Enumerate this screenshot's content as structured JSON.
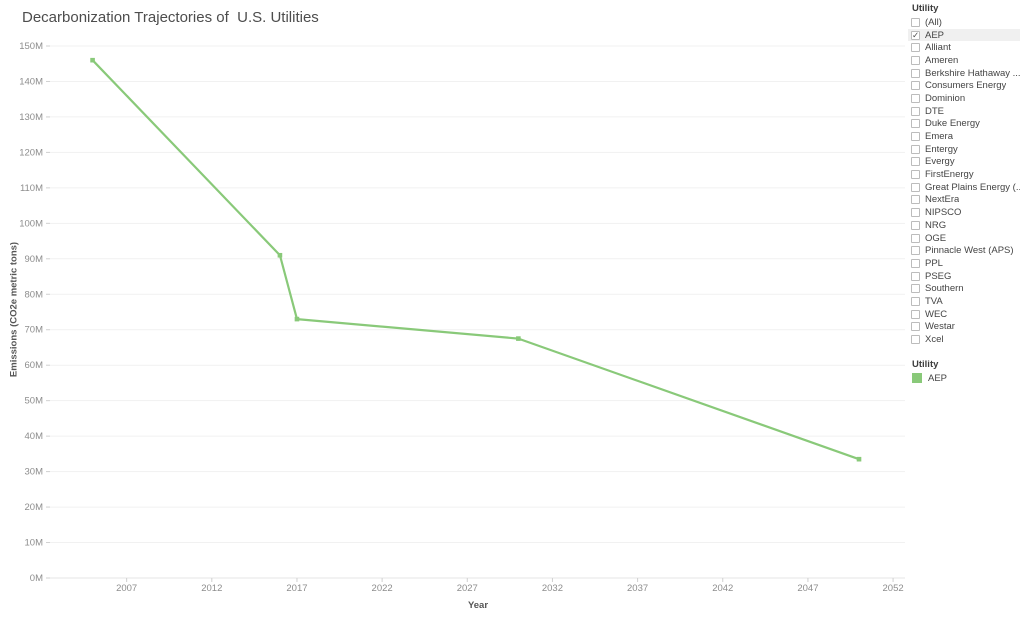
{
  "title": "Decarbonization Trajectories of  U.S. Utilities",
  "chart_data": {
    "type": "line",
    "title": "Decarbonization Trajectories of  U.S. Utilities",
    "xlabel": "Year",
    "ylabel": "Emissions (CO2e metric tons)",
    "unit": "million metric tons CO2e",
    "grid": true,
    "legend_position": "right",
    "xlim": [
      2002.5,
      2052.7
    ],
    "ylim": [
      0,
      150
    ],
    "x_ticks": [
      2007,
      2012,
      2017,
      2022,
      2027,
      2032,
      2037,
      2042,
      2047,
      2052
    ],
    "y_ticks": [
      {
        "value": 0,
        "label": "0M"
      },
      {
        "value": 10,
        "label": "10M"
      },
      {
        "value": 20,
        "label": "20M"
      },
      {
        "value": 30,
        "label": "30M"
      },
      {
        "value": 40,
        "label": "40M"
      },
      {
        "value": 50,
        "label": "50M"
      },
      {
        "value": 60,
        "label": "60M"
      },
      {
        "value": 70,
        "label": "70M"
      },
      {
        "value": 80,
        "label": "80M"
      },
      {
        "value": 90,
        "label": "90M"
      },
      {
        "value": 100,
        "label": "100M"
      },
      {
        "value": 110,
        "label": "110M"
      },
      {
        "value": 120,
        "label": "120M"
      },
      {
        "value": 130,
        "label": "130M"
      },
      {
        "value": 140,
        "label": "140M"
      },
      {
        "value": 150,
        "label": "150M"
      }
    ],
    "series": [
      {
        "name": "AEP",
        "color": "#89C979",
        "points": [
          [
            2005,
            146
          ],
          [
            2016,
            91
          ],
          [
            2017,
            73
          ],
          [
            2030,
            67.5
          ],
          [
            2050,
            33.5
          ]
        ]
      }
    ]
  },
  "filter": {
    "title": "Utility",
    "items": [
      {
        "label": "(All)",
        "checked": false
      },
      {
        "label": "AEP",
        "checked": true
      },
      {
        "label": "Alliant",
        "checked": false
      },
      {
        "label": "Ameren",
        "checked": false
      },
      {
        "label": "Berkshire Hathaway ...",
        "checked": false
      },
      {
        "label": "Consumers Energy",
        "checked": false
      },
      {
        "label": "Dominion",
        "checked": false
      },
      {
        "label": "DTE",
        "checked": false
      },
      {
        "label": "Duke Energy",
        "checked": false
      },
      {
        "label": "Emera",
        "checked": false
      },
      {
        "label": "Entergy",
        "checked": false
      },
      {
        "label": "Evergy",
        "checked": false
      },
      {
        "label": "FirstEnergy",
        "checked": false
      },
      {
        "label": "Great Plains Energy (...",
        "checked": false
      },
      {
        "label": "NextEra",
        "checked": false
      },
      {
        "label": "NIPSCO",
        "checked": false
      },
      {
        "label": "NRG",
        "checked": false
      },
      {
        "label": "OGE",
        "checked": false
      },
      {
        "label": "Pinnacle West (APS)",
        "checked": false
      },
      {
        "label": "PPL",
        "checked": false
      },
      {
        "label": "PSEG",
        "checked": false
      },
      {
        "label": "Southern",
        "checked": false
      },
      {
        "label": "TVA",
        "checked": false
      },
      {
        "label": "WEC",
        "checked": false
      },
      {
        "label": "Westar",
        "checked": false
      },
      {
        "label": "Xcel",
        "checked": false
      }
    ]
  },
  "legend": {
    "title": "Utility",
    "items": [
      {
        "label": "AEP",
        "color": "#89C979"
      }
    ]
  },
  "colors": {
    "line": "#89C979",
    "grid": "#f1f1f1",
    "axis_line": "#e4e4e4",
    "tick": "#d0d0d0",
    "tick_label": "#8d8d8d",
    "selected_row_bg": "#f0f0f0"
  }
}
